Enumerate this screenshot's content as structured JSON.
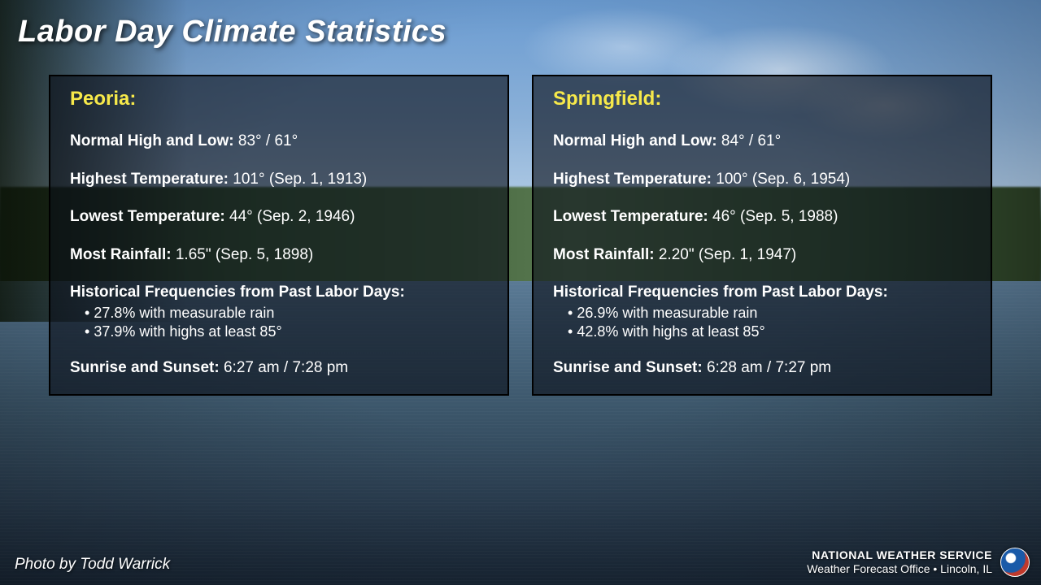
{
  "title": "Labor Day Climate Statistics",
  "labels": {
    "normal": "Normal High and Low:",
    "highest": "Highest Temperature:",
    "lowest": "Lowest Temperature:",
    "rainfall": "Most Rainfall:",
    "freq_header": "Historical Frequencies from Past Labor Days:",
    "sun": "Sunrise and Sunset:"
  },
  "cities": [
    {
      "name": "Peoria:",
      "normal": "83° / 61°",
      "highest": "101°  (Sep. 1, 1913)",
      "lowest": "44°  (Sep. 2, 1946)",
      "rainfall": "1.65\" (Sep. 5, 1898)",
      "freq": [
        "27.8% with measurable rain",
        "37.9% with highs at least 85°"
      ],
      "sun": "6:27 am / 7:28 pm"
    },
    {
      "name": "Springfield:",
      "normal": "84° / 61°",
      "highest": "100°  (Sep. 6, 1954)",
      "lowest": "46°  (Sep. 5, 1988)",
      "rainfall": "2.20\" (Sep. 1, 1947)",
      "freq": [
        "26.9% with measurable rain",
        "42.8% with highs at least 85°"
      ],
      "sun": "6:28 am / 7:27 pm"
    }
  ],
  "photo_credit": "Photo by Todd Warrick",
  "footer": {
    "line1": "NATIONAL WEATHER SERVICE",
    "line2": "Weather Forecast Office • Lincoln, IL"
  },
  "colors": {
    "title_text": "#ffffff",
    "city_text": "#f7e94a",
    "panel_bg": "rgba(10,15,25,0.62)",
    "panel_border": "#000000",
    "body_text": "#ffffff"
  }
}
